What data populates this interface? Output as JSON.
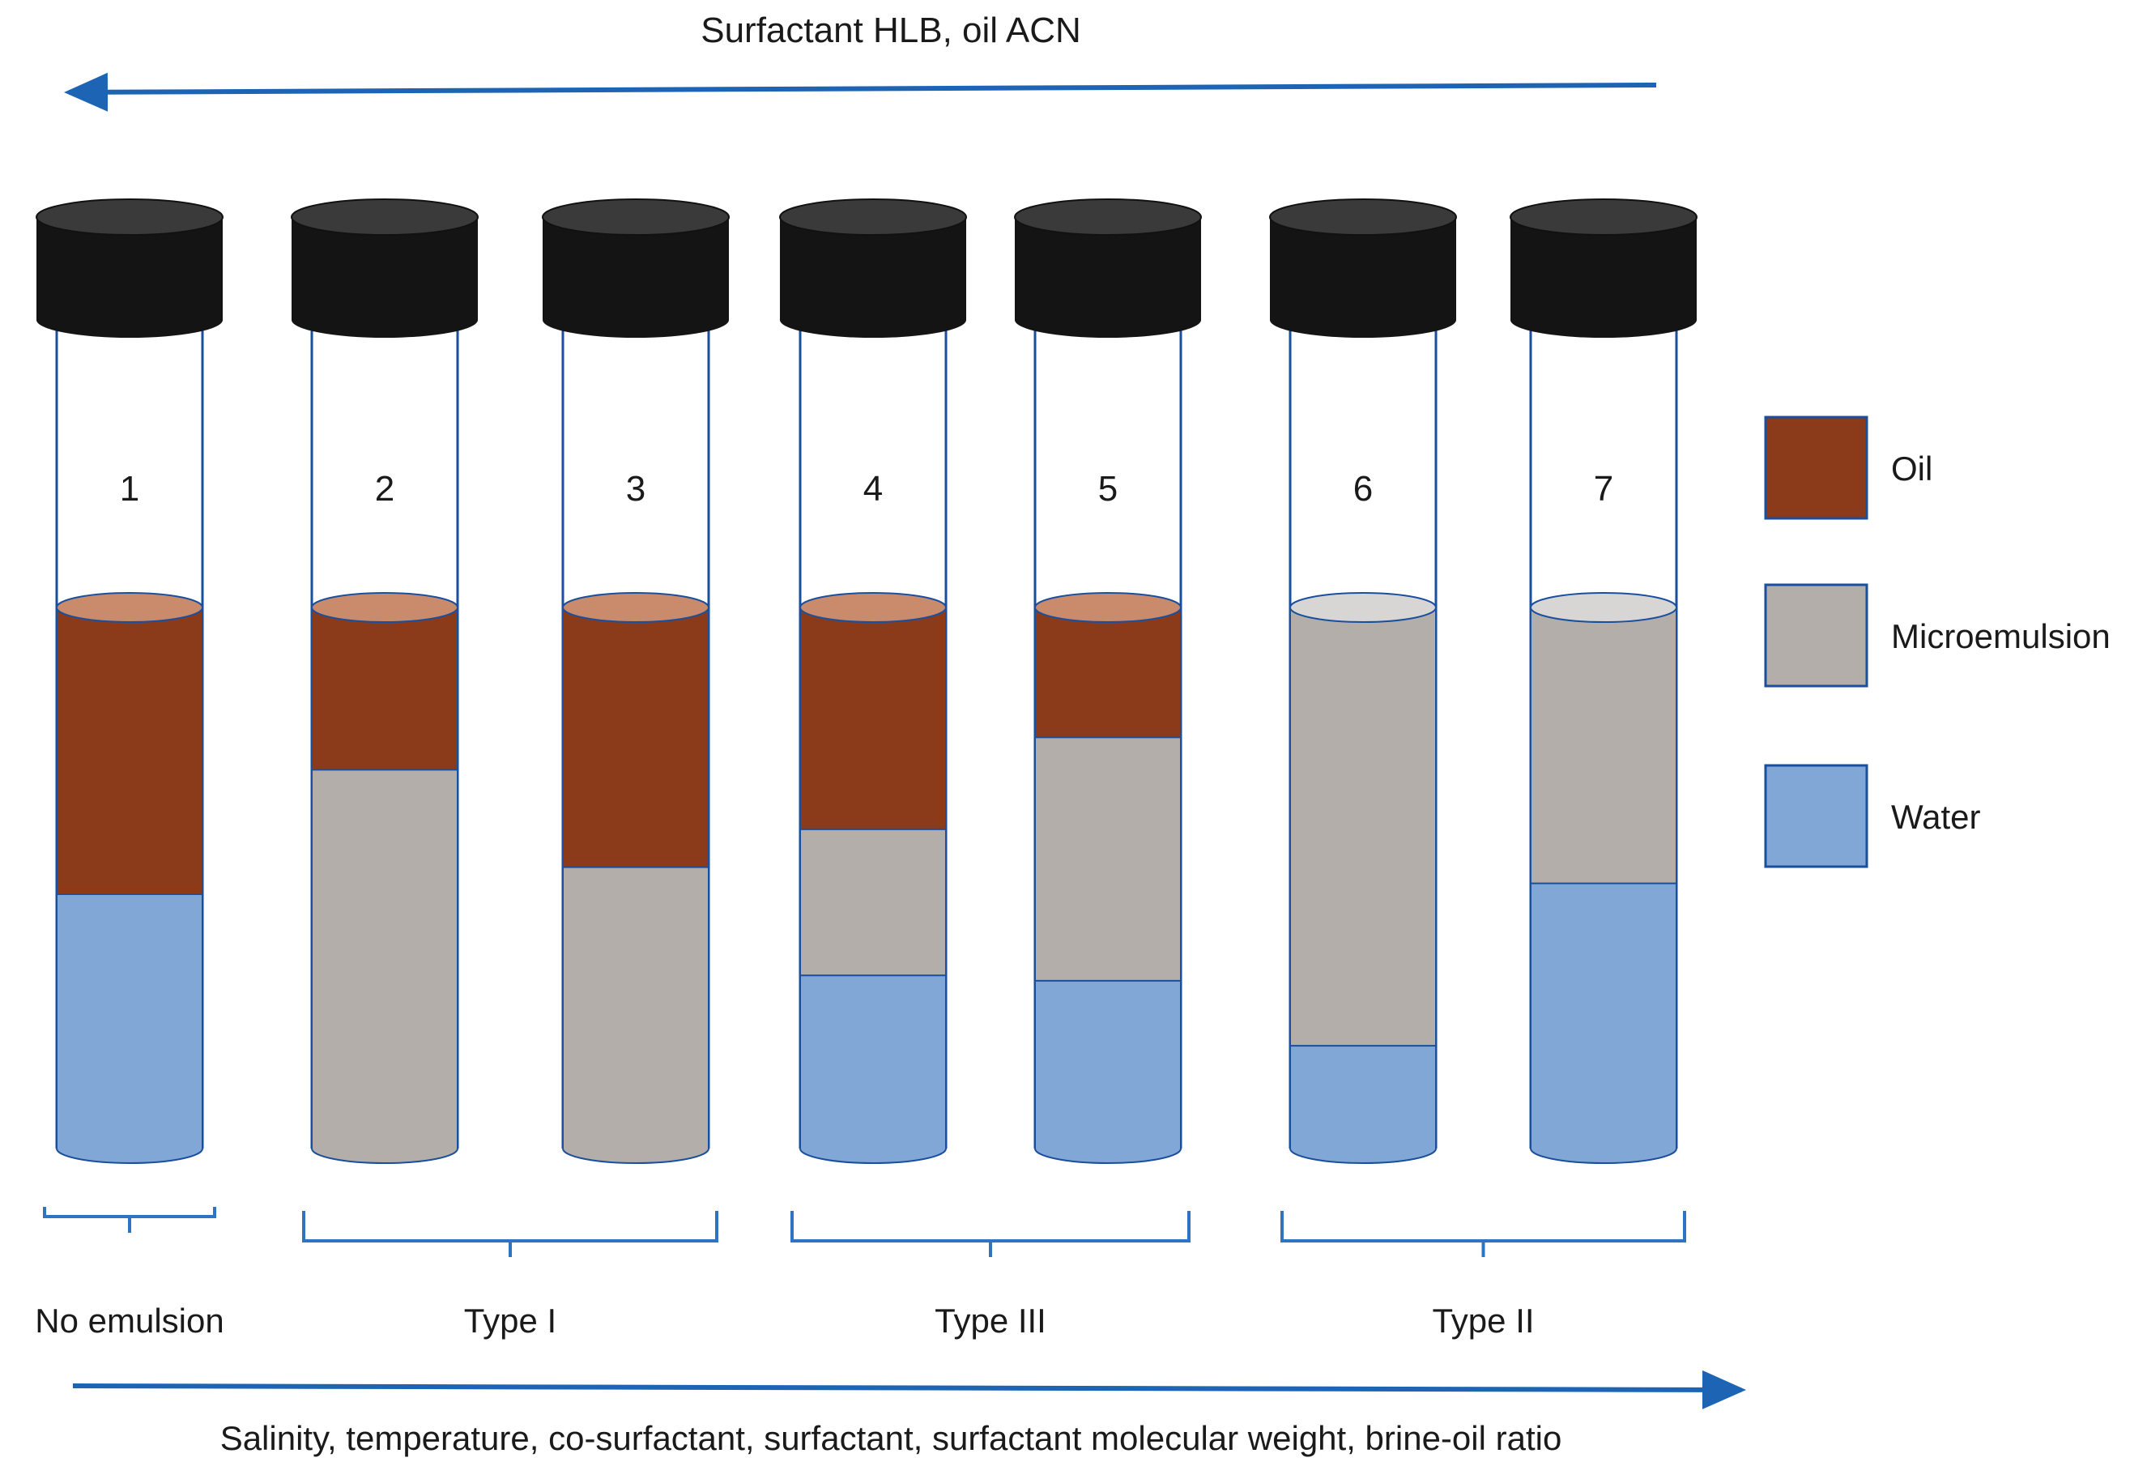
{
  "colors": {
    "oil": "#8b3a1a",
    "oil_top": "#c98b6b",
    "microemulsion": "#b3aeaa",
    "microemulsion_top": "#d8d6d4",
    "water": "#80a7d6",
    "arrow": "#1d64b5",
    "bracket": "#2f74c2",
    "cap": "#141414",
    "tube_outline": "#1a4f9e"
  },
  "top_arrow": {
    "label": "Surfactant HLB, oil ACN",
    "direction": "left"
  },
  "bottom_arrow": {
    "label": "Salinity, temperature, co-surfactant, surfactant, surfactant molecular weight, brine-oil ratio",
    "direction": "right"
  },
  "legend": [
    {
      "key": "oil",
      "label": "Oil"
    },
    {
      "key": "microemulsion",
      "label": "Microemulsion"
    },
    {
      "key": "water",
      "label": "Water"
    }
  ],
  "tubes": [
    {
      "number": "1",
      "layers": [
        {
          "phase": "oil",
          "fraction": 0.53
        },
        {
          "phase": "water",
          "fraction": 0.47
        }
      ]
    },
    {
      "number": "2",
      "layers": [
        {
          "phase": "oil",
          "fraction": 0.3
        },
        {
          "phase": "microemulsion",
          "fraction": 0.7
        }
      ]
    },
    {
      "number": "3",
      "layers": [
        {
          "phase": "oil",
          "fraction": 0.48
        },
        {
          "phase": "microemulsion",
          "fraction": 0.52
        }
      ]
    },
    {
      "number": "4",
      "layers": [
        {
          "phase": "oil",
          "fraction": 0.41
        },
        {
          "phase": "microemulsion",
          "fraction": 0.27
        },
        {
          "phase": "water",
          "fraction": 0.32
        }
      ]
    },
    {
      "number": "5",
      "layers": [
        {
          "phase": "oil",
          "fraction": 0.24
        },
        {
          "phase": "microemulsion",
          "fraction": 0.45
        },
        {
          "phase": "water",
          "fraction": 0.31
        }
      ]
    },
    {
      "number": "6",
      "layers": [
        {
          "phase": "microemulsion",
          "fraction": 0.81
        },
        {
          "phase": "water",
          "fraction": 0.19
        }
      ]
    },
    {
      "number": "7",
      "layers": [
        {
          "phase": "microemulsion",
          "fraction": 0.51
        },
        {
          "phase": "water",
          "fraction": 0.49
        }
      ]
    }
  ],
  "groups": [
    {
      "label": "No emulsion",
      "tubes": [
        "1"
      ]
    },
    {
      "label": "Type I",
      "tubes": [
        "2",
        "3"
      ]
    },
    {
      "label": "Type III",
      "tubes": [
        "4",
        "5"
      ]
    },
    {
      "label": "Type II",
      "tubes": [
        "6",
        "7"
      ]
    }
  ]
}
